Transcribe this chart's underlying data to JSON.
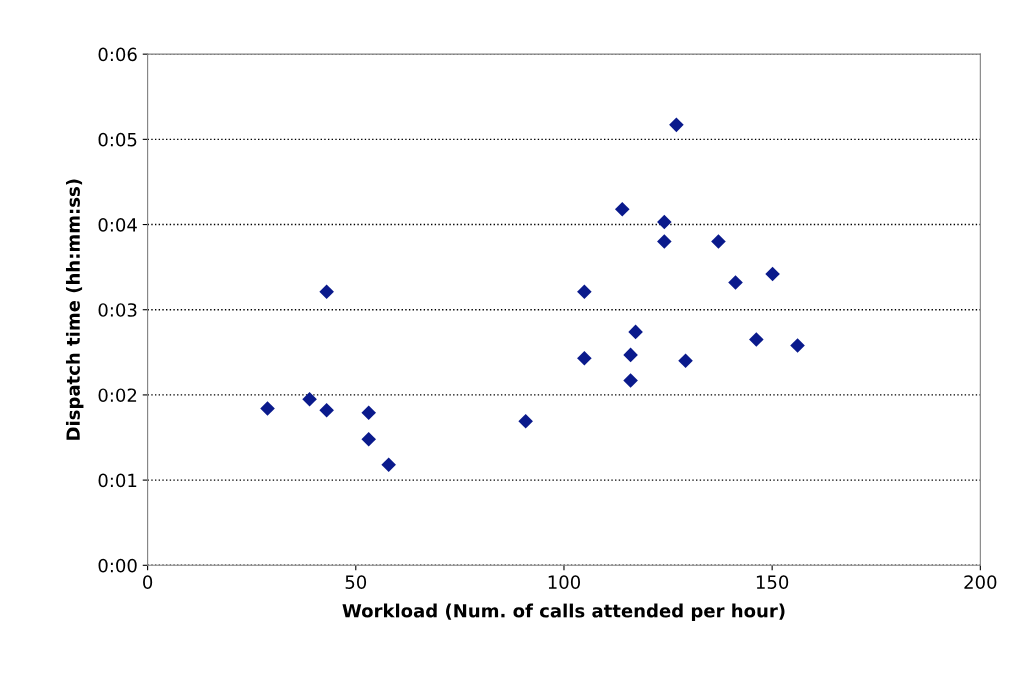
{
  "chart_data": {
    "type": "scatter",
    "xlabel": "Workload (Num. of calls attended per hour)",
    "ylabel": "Dispatch time (hh:mm:ss)",
    "x": [
      28.8,
      38.9,
      43.0,
      43.0,
      53.1,
      53.1,
      57.9,
      90.8,
      104.9,
      104.9,
      114.0,
      116.0,
      116.0,
      117.2,
      124.1,
      124.1,
      127.0,
      129.2,
      137.1,
      141.2,
      146.2,
      150.1,
      156.1
    ],
    "values": [
      1.84,
      1.95,
      3.21,
      1.82,
      1.79,
      1.48,
      1.18,
      1.69,
      3.21,
      2.43,
      4.18,
      2.47,
      2.17,
      2.74,
      4.03,
      3.8,
      5.17,
      2.4,
      3.8,
      3.32,
      2.65,
      3.42,
      2.58
    ],
    "color": "#0a1a8c",
    "marker": "diamond",
    "grid": "y",
    "line_style": "dotted",
    "xlim": [
      0,
      200
    ],
    "xticks": [
      0,
      50,
      100,
      150,
      200
    ],
    "ylim": [
      0,
      6
    ],
    "yticks": [
      {
        "value": 0,
        "label": "0:00"
      },
      {
        "value": 1,
        "label": "0:01"
      },
      {
        "value": 2,
        "label": "0:02"
      },
      {
        "value": 3,
        "label": "0:03"
      },
      {
        "value": 4,
        "label": "0:04"
      },
      {
        "value": 5,
        "label": "0:05"
      },
      {
        "value": 6,
        "label": "0:06"
      }
    ]
  }
}
